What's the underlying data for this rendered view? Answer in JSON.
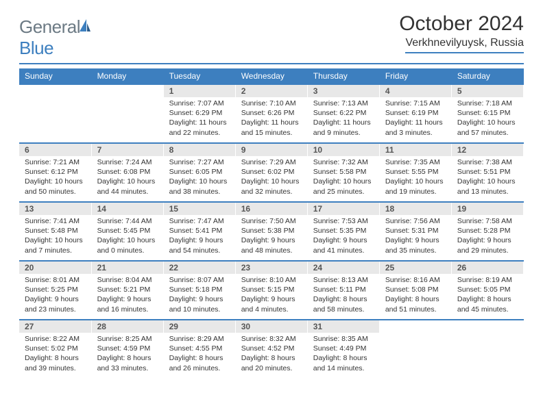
{
  "logo": {
    "word1": "General",
    "word2": "Blue"
  },
  "title": "October 2024",
  "location": "Verkhnevilyuysk, Russia",
  "colors": {
    "header_bg": "#3d7fbf",
    "daynum_bg": "#e8e8e8",
    "text": "#333333",
    "logo_gray": "#6c7a84",
    "logo_blue": "#3d7fbf",
    "page_bg": "#ffffff"
  },
  "fonts": {
    "title_pt": 30,
    "location_pt": 16,
    "dayheader_pt": 12,
    "daynum_pt": 12,
    "body_pt": 10.5
  },
  "weekdays": [
    "Sunday",
    "Monday",
    "Tuesday",
    "Wednesday",
    "Thursday",
    "Friday",
    "Saturday"
  ],
  "weeks": [
    [
      null,
      null,
      {
        "n": "1",
        "sunrise": "Sunrise: 7:07 AM",
        "sunset": "Sunset: 6:29 PM",
        "daylight": "Daylight: 11 hours and 22 minutes."
      },
      {
        "n": "2",
        "sunrise": "Sunrise: 7:10 AM",
        "sunset": "Sunset: 6:26 PM",
        "daylight": "Daylight: 11 hours and 15 minutes."
      },
      {
        "n": "3",
        "sunrise": "Sunrise: 7:13 AM",
        "sunset": "Sunset: 6:22 PM",
        "daylight": "Daylight: 11 hours and 9 minutes."
      },
      {
        "n": "4",
        "sunrise": "Sunrise: 7:15 AM",
        "sunset": "Sunset: 6:19 PM",
        "daylight": "Daylight: 11 hours and 3 minutes."
      },
      {
        "n": "5",
        "sunrise": "Sunrise: 7:18 AM",
        "sunset": "Sunset: 6:15 PM",
        "daylight": "Daylight: 10 hours and 57 minutes."
      }
    ],
    [
      {
        "n": "6",
        "sunrise": "Sunrise: 7:21 AM",
        "sunset": "Sunset: 6:12 PM",
        "daylight": "Daylight: 10 hours and 50 minutes."
      },
      {
        "n": "7",
        "sunrise": "Sunrise: 7:24 AM",
        "sunset": "Sunset: 6:08 PM",
        "daylight": "Daylight: 10 hours and 44 minutes."
      },
      {
        "n": "8",
        "sunrise": "Sunrise: 7:27 AM",
        "sunset": "Sunset: 6:05 PM",
        "daylight": "Daylight: 10 hours and 38 minutes."
      },
      {
        "n": "9",
        "sunrise": "Sunrise: 7:29 AM",
        "sunset": "Sunset: 6:02 PM",
        "daylight": "Daylight: 10 hours and 32 minutes."
      },
      {
        "n": "10",
        "sunrise": "Sunrise: 7:32 AM",
        "sunset": "Sunset: 5:58 PM",
        "daylight": "Daylight: 10 hours and 25 minutes."
      },
      {
        "n": "11",
        "sunrise": "Sunrise: 7:35 AM",
        "sunset": "Sunset: 5:55 PM",
        "daylight": "Daylight: 10 hours and 19 minutes."
      },
      {
        "n": "12",
        "sunrise": "Sunrise: 7:38 AM",
        "sunset": "Sunset: 5:51 PM",
        "daylight": "Daylight: 10 hours and 13 minutes."
      }
    ],
    [
      {
        "n": "13",
        "sunrise": "Sunrise: 7:41 AM",
        "sunset": "Sunset: 5:48 PM",
        "daylight": "Daylight: 10 hours and 7 minutes."
      },
      {
        "n": "14",
        "sunrise": "Sunrise: 7:44 AM",
        "sunset": "Sunset: 5:45 PM",
        "daylight": "Daylight: 10 hours and 0 minutes."
      },
      {
        "n": "15",
        "sunrise": "Sunrise: 7:47 AM",
        "sunset": "Sunset: 5:41 PM",
        "daylight": "Daylight: 9 hours and 54 minutes."
      },
      {
        "n": "16",
        "sunrise": "Sunrise: 7:50 AM",
        "sunset": "Sunset: 5:38 PM",
        "daylight": "Daylight: 9 hours and 48 minutes."
      },
      {
        "n": "17",
        "sunrise": "Sunrise: 7:53 AM",
        "sunset": "Sunset: 5:35 PM",
        "daylight": "Daylight: 9 hours and 41 minutes."
      },
      {
        "n": "18",
        "sunrise": "Sunrise: 7:56 AM",
        "sunset": "Sunset: 5:31 PM",
        "daylight": "Daylight: 9 hours and 35 minutes."
      },
      {
        "n": "19",
        "sunrise": "Sunrise: 7:58 AM",
        "sunset": "Sunset: 5:28 PM",
        "daylight": "Daylight: 9 hours and 29 minutes."
      }
    ],
    [
      {
        "n": "20",
        "sunrise": "Sunrise: 8:01 AM",
        "sunset": "Sunset: 5:25 PM",
        "daylight": "Daylight: 9 hours and 23 minutes."
      },
      {
        "n": "21",
        "sunrise": "Sunrise: 8:04 AM",
        "sunset": "Sunset: 5:21 PM",
        "daylight": "Daylight: 9 hours and 16 minutes."
      },
      {
        "n": "22",
        "sunrise": "Sunrise: 8:07 AM",
        "sunset": "Sunset: 5:18 PM",
        "daylight": "Daylight: 9 hours and 10 minutes."
      },
      {
        "n": "23",
        "sunrise": "Sunrise: 8:10 AM",
        "sunset": "Sunset: 5:15 PM",
        "daylight": "Daylight: 9 hours and 4 minutes."
      },
      {
        "n": "24",
        "sunrise": "Sunrise: 8:13 AM",
        "sunset": "Sunset: 5:11 PM",
        "daylight": "Daylight: 8 hours and 58 minutes."
      },
      {
        "n": "25",
        "sunrise": "Sunrise: 8:16 AM",
        "sunset": "Sunset: 5:08 PM",
        "daylight": "Daylight: 8 hours and 51 minutes."
      },
      {
        "n": "26",
        "sunrise": "Sunrise: 8:19 AM",
        "sunset": "Sunset: 5:05 PM",
        "daylight": "Daylight: 8 hours and 45 minutes."
      }
    ],
    [
      {
        "n": "27",
        "sunrise": "Sunrise: 8:22 AM",
        "sunset": "Sunset: 5:02 PM",
        "daylight": "Daylight: 8 hours and 39 minutes."
      },
      {
        "n": "28",
        "sunrise": "Sunrise: 8:25 AM",
        "sunset": "Sunset: 4:59 PM",
        "daylight": "Daylight: 8 hours and 33 minutes."
      },
      {
        "n": "29",
        "sunrise": "Sunrise: 8:29 AM",
        "sunset": "Sunset: 4:55 PM",
        "daylight": "Daylight: 8 hours and 26 minutes."
      },
      {
        "n": "30",
        "sunrise": "Sunrise: 8:32 AM",
        "sunset": "Sunset: 4:52 PM",
        "daylight": "Daylight: 8 hours and 20 minutes."
      },
      {
        "n": "31",
        "sunrise": "Sunrise: 8:35 AM",
        "sunset": "Sunset: 4:49 PM",
        "daylight": "Daylight: 8 hours and 14 minutes."
      },
      null,
      null
    ]
  ]
}
